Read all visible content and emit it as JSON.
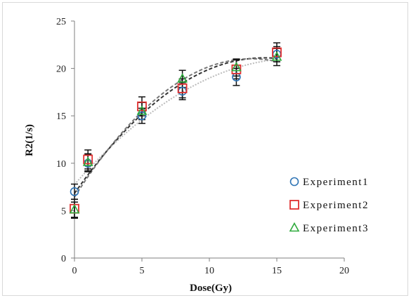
{
  "chart_data": {
    "type": "scatter",
    "xlabel": "Dose(Gy)",
    "ylabel": "R2(1/s)",
    "xlim": [
      0,
      20
    ],
    "ylim": [
      0,
      25
    ],
    "xticks": [
      0,
      5,
      10,
      15,
      20
    ],
    "yticks": [
      0,
      5,
      10,
      15,
      20,
      25
    ],
    "grid": false,
    "legend_position": "right",
    "series": [
      {
        "name": "Experiment1",
        "marker": "circle",
        "color": "#2e74b5",
        "x": [
          0,
          1,
          5,
          8,
          12,
          15
        ],
        "y": [
          7.0,
          10.0,
          15.0,
          17.6,
          19.1,
          21.5
        ],
        "error": [
          0.8,
          0.9,
          0.8,
          0.9,
          0.9,
          0.8
        ],
        "fit": {
          "color": "#bbbbbb",
          "style": "dotted"
        }
      },
      {
        "name": "Experiment2",
        "marker": "square",
        "color": "#e03030",
        "x": [
          0,
          1,
          5,
          8,
          12,
          15
        ],
        "y": [
          5.2,
          10.4,
          16.0,
          17.9,
          19.9,
          21.7
        ],
        "error": [
          1.0,
          1.0,
          1.0,
          1.0,
          1.0,
          1.0
        ],
        "fit": {
          "color": "#333333",
          "style": "dashed"
        }
      },
      {
        "name": "Experiment3",
        "marker": "triangle",
        "color": "#2eaa3c",
        "x": [
          0,
          1,
          5,
          8,
          12,
          15
        ],
        "y": [
          5.1,
          10.1,
          15.5,
          18.9,
          20.1,
          21.2
        ],
        "error": [
          0.8,
          0.9,
          0.9,
          0.9,
          0.9,
          0.9
        ],
        "fit": {
          "color": "#777777",
          "style": "dashed"
        }
      }
    ]
  }
}
